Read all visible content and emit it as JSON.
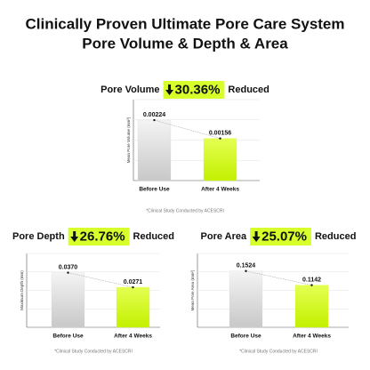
{
  "header": {
    "lines": [
      "Clinically Proven Ultimate Pore Care System",
      "Pore Volume & Depth & Area"
    ]
  },
  "chart_data": [
    {
      "type": "bar",
      "title": "Pore Volume",
      "badge": "30.36%",
      "title_suffix": "Reduced",
      "y_label": "Mean Pore Volume (mm³)",
      "categories": [
        "Before Use",
        "After 4 Weeks"
      ],
      "values": [
        0.00224,
        0.00156
      ],
      "colors": [
        "#d9d9d9",
        "#d6ff2b"
      ],
      "ylim": [
        0,
        0.003
      ],
      "grid": true,
      "footnote": "*Clinical Study Conducted by ACESCRI"
    },
    {
      "type": "bar",
      "title": "Pore Depth",
      "badge": "26.76%",
      "title_suffix": "Reduced",
      "y_label": "Maximum Depth (mm)",
      "categories": [
        "Before Use",
        "After 4 Weeks"
      ],
      "values": [
        0.037,
        0.0271
      ],
      "value_labels": [
        "0.0370",
        "0.0271"
      ],
      "colors": [
        "#d9d9d9",
        "#d6ff2b"
      ],
      "ylim": [
        0,
        0.05
      ],
      "grid": true,
      "footnote": "*Clinical Study Conducted by ACESCRI"
    },
    {
      "type": "bar",
      "title": "Pore Area",
      "badge": "25.07%",
      "title_suffix": "Reduced",
      "y_label": "Mean Pore Area (mm²)",
      "categories": [
        "Before Use",
        "After 4 Weeks"
      ],
      "values": [
        0.1524,
        0.1142
      ],
      "colors": [
        "#d9d9d9",
        "#d6ff2b"
      ],
      "ylim": [
        0,
        0.2
      ],
      "grid": true,
      "footnote": "*Clinical Study Conducted by ACESCRI"
    }
  ]
}
